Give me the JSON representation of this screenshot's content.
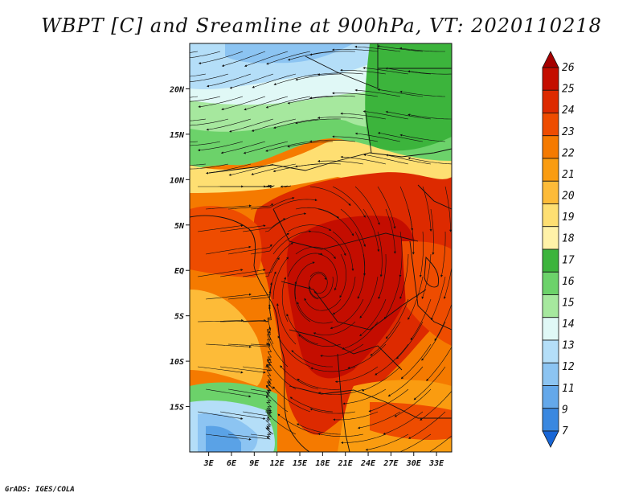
{
  "title": "WBPT [C] and Sreamline at 900hPa, VT: 2020110218",
  "credit": "GrADS: IGES/COLA",
  "map": {
    "lat_ticks": [
      {
        "label": "20N",
        "lat": 20
      },
      {
        "label": "15N",
        "lat": 15
      },
      {
        "label": "10N",
        "lat": 10
      },
      {
        "label": "5N",
        "lat": 5
      },
      {
        "label": "EQ",
        "lat": 0
      },
      {
        "label": "5S",
        "lat": -5
      },
      {
        "label": "10S",
        "lat": -10
      },
      {
        "label": "15S",
        "lat": -15
      }
    ],
    "lon_ticks": [
      {
        "label": "3E",
        "lon": 3
      },
      {
        "label": "6E",
        "lon": 6
      },
      {
        "label": "9E",
        "lon": 9
      },
      {
        "label": "12E",
        "lon": 12
      },
      {
        "label": "15E",
        "lon": 15
      },
      {
        "label": "18E",
        "lon": 18
      },
      {
        "label": "21E",
        "lon": 21
      },
      {
        "label": "24E",
        "lon": 24
      },
      {
        "label": "27E",
        "lon": 27
      },
      {
        "label": "30E",
        "lon": 30
      },
      {
        "label": "33E",
        "lon": 33
      }
    ],
    "lon_range": [
      0.5,
      35
    ],
    "lat_range": [
      -20,
      25
    ]
  },
  "colorbar": {
    "levels": [
      "26",
      "25",
      "24",
      "23",
      "22",
      "21",
      "20",
      "19",
      "18",
      "17",
      "16",
      "15",
      "14",
      "13",
      "12",
      "11",
      "9",
      "7"
    ],
    "colors": [
      "#a50000",
      "#c40d00",
      "#dd2a00",
      "#ee4c00",
      "#f57a00",
      "#fa9c10",
      "#fdbb38",
      "#fedf72",
      "#fff2a8",
      "#3cb43c",
      "#6cd26a",
      "#a6e89e",
      "#e0f8f6",
      "#b4def8",
      "#8cc4f2",
      "#64a8ea",
      "#3a88e0",
      "#1866d6"
    ]
  },
  "fields": {
    "colors": {
      "blue_deep": "#5aa2e6",
      "blue": "#8cc4f2",
      "blue_light": "#b4def8",
      "cyan": "#e0f8f6",
      "green_light": "#a6e89e",
      "green": "#6cd26a",
      "green_dark": "#3cb43c",
      "yellow_pale": "#fff2a8",
      "yellow": "#fedf72",
      "orange_light": "#fdbb38",
      "orange": "#f57a00",
      "orange_red": "#ee4c00",
      "red": "#dd2a00",
      "red_dark": "#c40d00"
    }
  }
}
